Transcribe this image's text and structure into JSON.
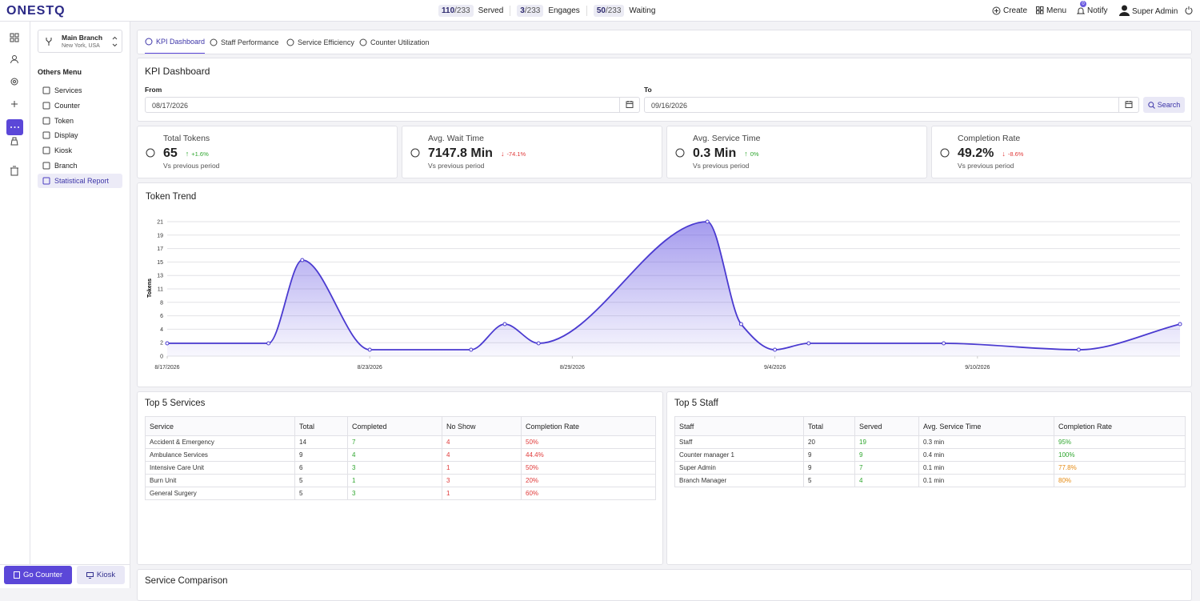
{
  "header": {
    "logo": "ONESTQ",
    "stats": [
      {
        "count": "110",
        "total": "/233",
        "label": "Served"
      },
      {
        "count": "3",
        "total": "/233",
        "label": "Engages"
      },
      {
        "count": "50",
        "total": "/233",
        "label": "Waiting"
      }
    ],
    "actions": [
      "Create",
      "Menu",
      "Notify"
    ],
    "notify_badge": "0",
    "user": "Super Admin"
  },
  "sidebar": {
    "branch": {
      "name": "Main Branch",
      "location": "New York, USA"
    },
    "section": "Others Menu",
    "items": [
      "Services",
      "Counter",
      "Token",
      "Display",
      "Kiosk",
      "Branch",
      "Statistical Report"
    ],
    "active_item": "Statistical Report",
    "buttons": [
      "Go Counter",
      "Kiosk"
    ]
  },
  "tabs": [
    "KPI Dashboard",
    "Staff Performance",
    "Service Efficiency",
    "Counter Utilization"
  ],
  "filter": {
    "title": "KPI Dashboard",
    "from_label": "From",
    "from": "08/17/2026",
    "to_label": "To",
    "to": "09/16/2026",
    "search": "Search"
  },
  "kpis": [
    {
      "title": "Total Tokens",
      "value": "65",
      "change": "+1.6%",
      "note": "Vs previous period"
    },
    {
      "title": "Avg. Wait Time",
      "value": "7147.8 Min",
      "change": "-74.1%",
      "note": "Vs previous period"
    },
    {
      "title": "Avg. Service Time",
      "value": "0.3 Min",
      "change": "0%",
      "note": "Vs previous period"
    },
    {
      "title": "Completion Rate",
      "value": "49.2%",
      "change": "-8.6%",
      "note": "Vs previous period"
    }
  ],
  "chart_data": {
    "type": "line",
    "title": "Token Trend",
    "y_label": "Tokens",
    "color": "#4a3ad0",
    "grid": true,
    "x": [
      "8/17/2026",
      "8/20/2026",
      "8/21/2026",
      "8/23/2026",
      "8/26/2026",
      "8/27/2026",
      "8/28/2026",
      "9/2/2026",
      "9/3/2026",
      "9/4/2026",
      "9/5/2026",
      "9/9/2026",
      "9/13/2026",
      "9/16/2026"
    ],
    "values": [
      2,
      2,
      15,
      1,
      1,
      5,
      2,
      21,
      5,
      1,
      2,
      2,
      1,
      5
    ],
    "xlim": [
      "8/17/2026",
      "9/16/2026"
    ],
    "xticks": [
      "8/17/2026",
      "8/23/2026",
      "8/29/2026",
      "9/4/2026",
      "9/10/2026"
    ],
    "ylim": [
      0,
      21
    ],
    "yticks": [
      0,
      {
        "value": 2.1,
        "label": "2"
      },
      {
        "value": 4.2,
        "label": "4"
      },
      {
        "value": 6.3,
        "label": "6"
      },
      {
        "value": 8.4,
        "label": "8"
      },
      {
        "value": 10.5,
        "label": "11"
      },
      {
        "value": 12.6,
        "label": "13"
      },
      {
        "value": 14.7,
        "label": "15"
      },
      {
        "value": 16.8,
        "label": "17"
      },
      {
        "value": 18.9,
        "label": "19"
      },
      21
    ]
  },
  "top_services": {
    "title": "Top 5 Services",
    "columns": [
      "Service",
      "Total",
      "Completed",
      "No Show",
      "Completion Rate"
    ],
    "rows": [
      [
        "Accident & Emergency",
        "14",
        "7",
        "4",
        "50%"
      ],
      [
        "Ambulance Services",
        "9",
        "4",
        "4",
        "44.4%"
      ],
      [
        "Intensive Care Unit",
        "6",
        "3",
        "1",
        "50%"
      ],
      [
        "Burn Unit",
        "5",
        "1",
        "3",
        "20%"
      ],
      [
        "General Surgery",
        "5",
        "3",
        "1",
        "60%"
      ]
    ]
  },
  "top_staff": {
    "title": "Top 5 Staff",
    "columns": [
      "Staff",
      "Total",
      "Served",
      "Avg. Service Time",
      "Completion Rate"
    ],
    "rows": [
      [
        "Staff",
        "20",
        "19",
        "0.3 min",
        "95%"
      ],
      [
        "Counter manager 1",
        "9",
        "9",
        "0.4 min",
        "100%"
      ],
      [
        "Super Admin",
        "9",
        "7",
        "0.1 min",
        "77.8%"
      ],
      [
        "Branch Manager",
        "5",
        "4",
        "0.1 min",
        "80%"
      ]
    ]
  },
  "service_comparison": {
    "title": "Service Comparison"
  }
}
